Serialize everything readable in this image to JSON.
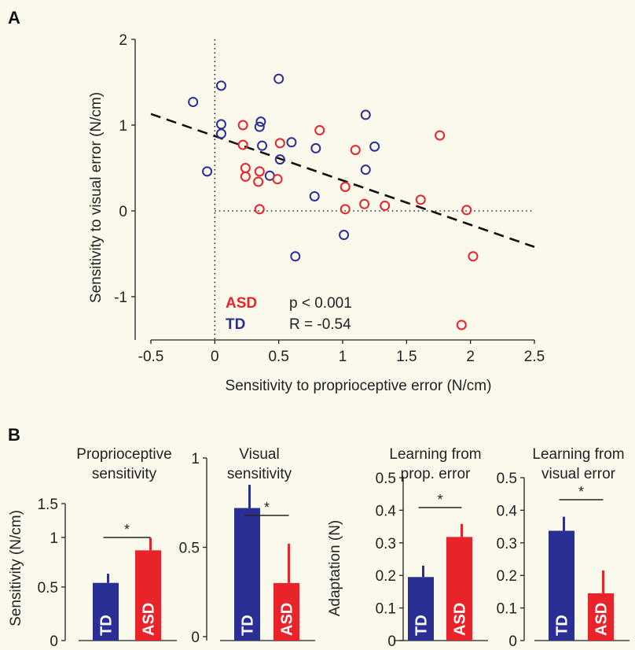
{
  "panels": {
    "a_label": "A",
    "b_label": "B"
  },
  "colors": {
    "background": "#fbf8ec",
    "td": "#2a2f93",
    "asd": "#e8232a",
    "axis": "#222222"
  },
  "chart_data": [
    {
      "type": "scatter",
      "panel": "A",
      "xlabel": "Sensitivity to proprioceptive error (N/cm)",
      "ylabel": "Sensitivity to visual error (N/cm)",
      "xlim": [
        -0.5,
        2.5
      ],
      "ylim": [
        -1.5,
        2
      ],
      "xticks": [
        -0.5,
        0,
        0.5,
        1,
        1.5,
        2,
        2.5
      ],
      "xtick_labels": [
        "-0.5",
        "0",
        "0.5",
        "1",
        "1.5",
        "2",
        "2.5"
      ],
      "yticks": [
        -1,
        0,
        1,
        2
      ],
      "ytick_labels": [
        "-1",
        "0",
        "1",
        "2"
      ],
      "reference_lines": {
        "x": 0,
        "y": 0,
        "style": "dotted"
      },
      "fit_line": {
        "x": [
          -0.5,
          2.5
        ],
        "y": [
          1.13,
          -0.42
        ],
        "style": "dashed"
      },
      "legend": [
        "ASD",
        "TD"
      ],
      "stats": {
        "p": "p < 0.001",
        "r": "R = -0.54"
      },
      "series": [
        {
          "name": "TD",
          "color": "#2a2f93",
          "points": [
            [
              -0.17,
              1.27
            ],
            [
              0.05,
              1.46
            ],
            [
              0.5,
              1.54
            ],
            [
              0.05,
              1.01
            ],
            [
              0.05,
              0.9
            ],
            [
              0.36,
              1.04
            ],
            [
              0.35,
              0.98
            ],
            [
              1.18,
              1.12
            ],
            [
              0.37,
              0.76
            ],
            [
              0.6,
              0.8
            ],
            [
              0.79,
              0.73
            ],
            [
              1.25,
              0.75
            ],
            [
              0.51,
              0.6
            ],
            [
              -0.06,
              0.46
            ],
            [
              0.43,
              0.41
            ],
            [
              1.18,
              0.48
            ],
            [
              0.78,
              0.17
            ],
            [
              1.01,
              -0.28
            ],
            [
              0.63,
              -0.53
            ]
          ]
        },
        {
          "name": "ASD",
          "color": "#e8232a",
          "points": [
            [
              0.22,
              1.0
            ],
            [
              0.82,
              0.94
            ],
            [
              1.76,
              0.88
            ],
            [
              0.22,
              0.77
            ],
            [
              0.51,
              0.79
            ],
            [
              1.1,
              0.71
            ],
            [
              0.24,
              0.5
            ],
            [
              0.35,
              0.46
            ],
            [
              0.24,
              0.4
            ],
            [
              0.34,
              0.34
            ],
            [
              0.49,
              0.37
            ],
            [
              1.02,
              0.28
            ],
            [
              1.61,
              0.13
            ],
            [
              1.17,
              0.08
            ],
            [
              1.33,
              0.06
            ],
            [
              1.02,
              0.02
            ],
            [
              0.35,
              0.02
            ],
            [
              1.97,
              0.01
            ],
            [
              2.02,
              -0.53
            ],
            [
              1.93,
              -1.33
            ]
          ]
        }
      ]
    },
    {
      "type": "bar",
      "panel": "B",
      "title": "Proprioceptive sensitivity",
      "title_lines": [
        "Proprioceptive",
        "sensitivity"
      ],
      "ylabel": "Sensitivity (N/cm)",
      "ylim": [
        0,
        1.5
      ],
      "yticks": [
        0,
        0.5,
        1,
        1.5
      ],
      "ytick_labels": [
        "0",
        "0.5",
        "1",
        "1.5"
      ],
      "y_offset_zero": 0.3,
      "categories": [
        "TD",
        "ASD"
      ],
      "values": [
        0.55,
        0.94
      ],
      "errors": [
        0.11,
        0.15
      ],
      "significance": "*"
    },
    {
      "type": "bar",
      "panel": "B",
      "title": "Visual sensitivity",
      "title_lines": [
        "Visual",
        "sensitivity"
      ],
      "ylabel": "",
      "ylim": [
        0,
        1
      ],
      "yticks": [
        0,
        0.5,
        1
      ],
      "ytick_labels": [
        "0",
        "0.5",
        "1"
      ],
      "categories": [
        "TD",
        "ASD"
      ],
      "values": [
        0.72,
        0.3
      ],
      "errors": [
        0.13,
        0.22
      ],
      "significance": "*"
    },
    {
      "type": "bar",
      "panel": "B",
      "title": "Learning from prop. error",
      "title_lines": [
        "Learning from",
        "prop. error"
      ],
      "ylabel": "Adaptation (N)",
      "ylim": [
        0,
        0.5
      ],
      "yticks": [
        0,
        0.1,
        0.2,
        0.3,
        0.4,
        0.5
      ],
      "ytick_labels": [
        "0",
        "0.1",
        "0.2",
        "0.3",
        "0.4",
        "0.5"
      ],
      "categories": [
        "TD",
        "ASD"
      ],
      "values": [
        0.195,
        0.318
      ],
      "errors": [
        0.035,
        0.04
      ],
      "significance": "*"
    },
    {
      "type": "bar",
      "panel": "B",
      "title": "Learning from visual error",
      "title_lines": [
        "Learning from",
        "visual error"
      ],
      "ylabel": "",
      "ylim": [
        0,
        0.5
      ],
      "yticks": [
        0,
        0.1,
        0.2,
        0.3,
        0.4,
        0.5
      ],
      "ytick_labels": [
        "0",
        "0.1",
        "0.2",
        "0.3",
        "0.4",
        "0.5"
      ],
      "categories": [
        "TD",
        "ASD"
      ],
      "values": [
        0.337,
        0.145
      ],
      "errors": [
        0.043,
        0.07
      ],
      "significance": "*"
    }
  ]
}
